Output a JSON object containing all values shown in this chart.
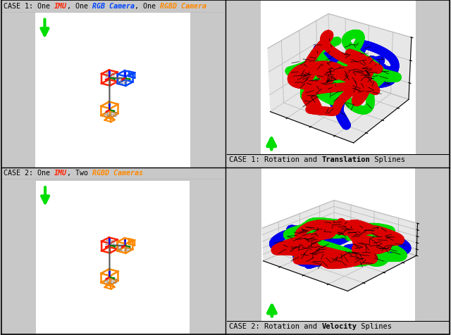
{
  "title_case1_parts": [
    [
      "CASE 1: ",
      "black",
      false,
      false
    ],
    [
      "One ",
      "black",
      false,
      false
    ],
    [
      "IMU",
      "#ff2200",
      true,
      true
    ],
    [
      ", One ",
      "black",
      false,
      false
    ],
    [
      "RGB Camera",
      "#0044ff",
      true,
      true
    ],
    [
      ", One ",
      "black",
      false,
      false
    ],
    [
      "RGBD Camera",
      "#ff8800",
      true,
      true
    ]
  ],
  "title_case2_parts": [
    [
      "CASE 2: ",
      "black",
      false,
      false
    ],
    [
      "One ",
      "black",
      false,
      false
    ],
    [
      "IMU",
      "#ff2200",
      true,
      true
    ],
    [
      ", Two ",
      "black",
      false,
      false
    ],
    [
      "RGBD Cameras",
      "#ff8800",
      true,
      true
    ]
  ],
  "caption1_parts": [
    [
      "CASE 1: ",
      "black",
      false,
      false
    ],
    [
      "Rotation and ",
      "black",
      false,
      false
    ],
    [
      "Translation",
      "black",
      false,
      true
    ],
    [
      " Splines",
      "black",
      false,
      false
    ]
  ],
  "caption2_parts": [
    [
      "CASE 2: ",
      "black",
      false,
      false
    ],
    [
      "Rotation and ",
      "black",
      false,
      false
    ],
    [
      "Velocity",
      "black",
      false,
      true
    ],
    [
      " Splines",
      "black",
      false,
      false
    ]
  ],
  "imu_color": "#ff2200",
  "rgb_color": "#0044ff",
  "rgbd_color": "#ff8800",
  "imu_box_color": "#ff2200",
  "black": "#000000",
  "white": "#ffffff",
  "panel_bg": "#ffffff",
  "spline_blue": "#0000ee",
  "spline_green": "#00dd00",
  "spline_red": "#dd0000",
  "grid_panel_bg": "#d8d8d8",
  "title_bg": "#f5f5f5",
  "outer_bg": "#c8c8c8"
}
